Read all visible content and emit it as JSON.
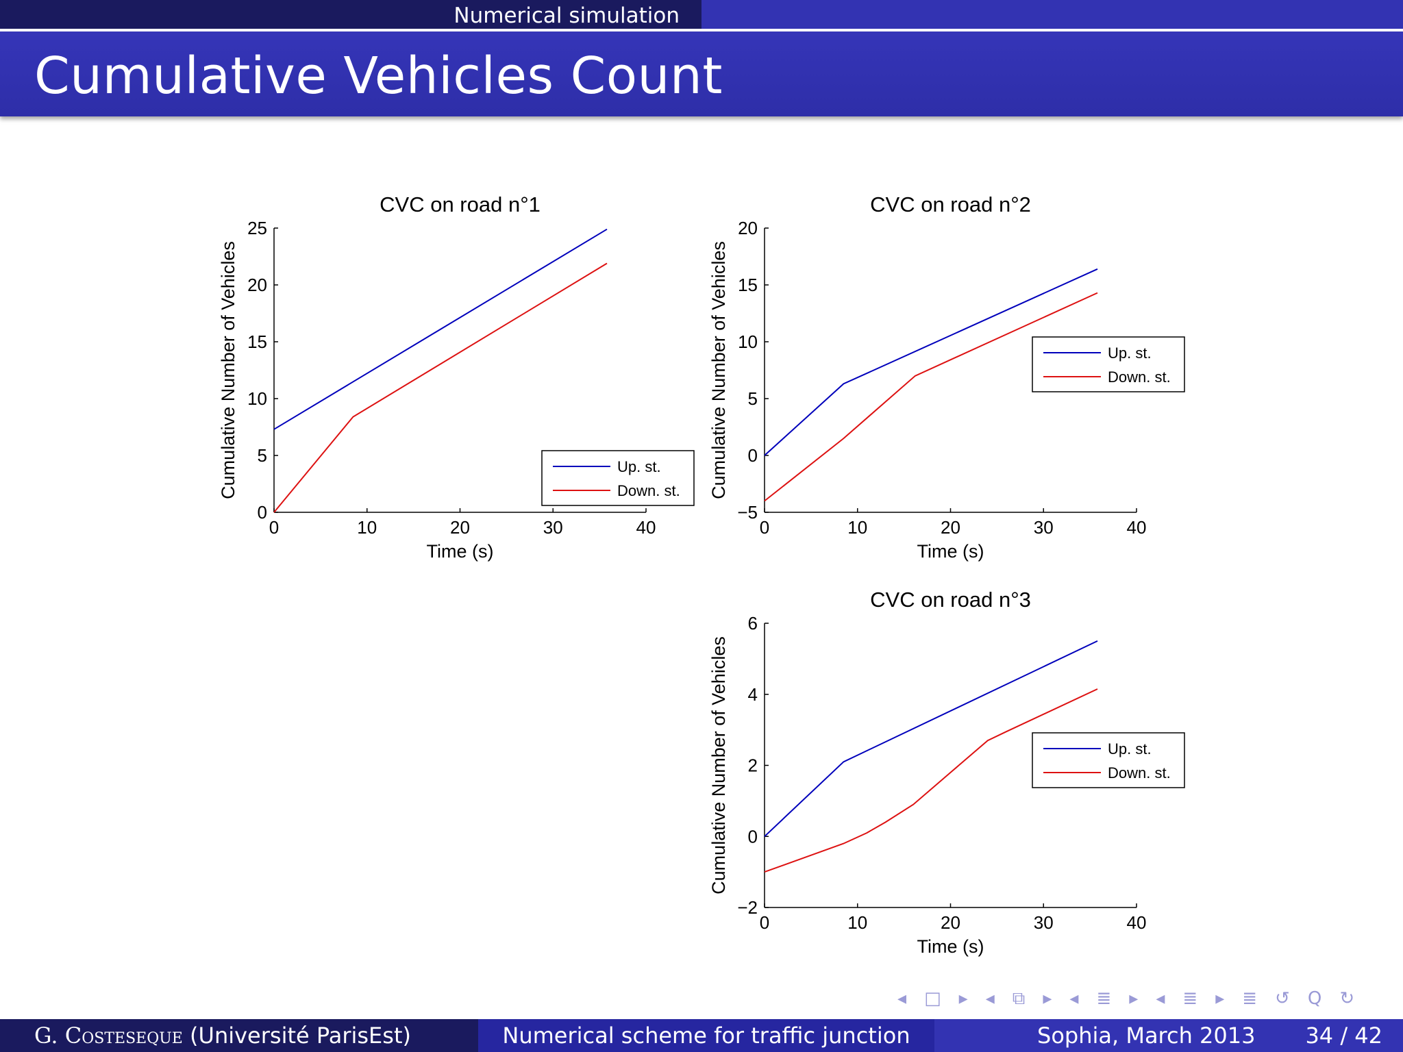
{
  "header": {
    "section": "Numerical simulation",
    "title": "Cumulative Vehicles Count"
  },
  "footer": {
    "author_first": "G. ",
    "author_last": "Costeseque",
    "affiliation": "(Université ParisEst)",
    "talk_title": "Numerical scheme for traffic junction",
    "date": "Sophia, March 2013",
    "page": "34 / 42"
  },
  "nav": {
    "symbols": [
      "◂",
      "□",
      "▸",
      "◂",
      "⧉",
      "▸",
      "◂",
      "≣",
      "▸",
      "◂",
      "≣",
      "▸",
      "≣",
      "↺",
      "Q",
      "↻"
    ]
  },
  "colors": {
    "up": "#0000bb",
    "down": "#dd1111"
  },
  "chart_data": [
    {
      "type": "line",
      "title": "CVC on road n°1",
      "xlabel": "Time (s)",
      "ylabel": "Cumulative Number of Vehicles",
      "xlim": [
        0,
        40
      ],
      "ylim": [
        0,
        25
      ],
      "xticks": [
        0,
        10,
        20,
        30,
        40
      ],
      "yticks": [
        0,
        5,
        10,
        15,
        20,
        25
      ],
      "legend_position": "bottom-right",
      "series": [
        {
          "name": "Up. st.",
          "color": "#0000bb",
          "x": [
            0,
            35.8
          ],
          "y": [
            7.3,
            24.9
          ]
        },
        {
          "name": "Down. st.",
          "color": "#dd1111",
          "x": [
            0,
            8.5,
            35.8
          ],
          "y": [
            0,
            8.4,
            21.9
          ]
        }
      ]
    },
    {
      "type": "line",
      "title": "CVC on road n°2",
      "xlabel": "Time (s)",
      "ylabel": "Cumulative Number of Vehicles",
      "xlim": [
        0,
        40
      ],
      "ylim": [
        -5,
        20
      ],
      "xticks": [
        0,
        10,
        20,
        30,
        40
      ],
      "yticks": [
        -5,
        0,
        5,
        10,
        15,
        20
      ],
      "legend_position": "middle-right",
      "series": [
        {
          "name": "Up. st.",
          "color": "#0000bb",
          "x": [
            0,
            8.5,
            35.8
          ],
          "y": [
            0,
            6.3,
            16.4
          ]
        },
        {
          "name": "Down. st.",
          "color": "#dd1111",
          "x": [
            0,
            8.5,
            16.2,
            35.8
          ],
          "y": [
            -4,
            1.5,
            7.0,
            14.3
          ]
        }
      ]
    },
    {
      "type": "line",
      "title": "CVC on road n°3",
      "xlabel": "Time (s)",
      "ylabel": "Cumulative Number of Vehicles",
      "xlim": [
        0,
        40
      ],
      "ylim": [
        -2,
        6
      ],
      "xticks": [
        0,
        10,
        20,
        30,
        40
      ],
      "yticks": [
        -2,
        0,
        2,
        4,
        6
      ],
      "legend_position": "middle-right",
      "series": [
        {
          "name": "Up. st.",
          "color": "#0000bb",
          "x": [
            0,
            8.5,
            35.8
          ],
          "y": [
            0,
            2.1,
            5.5
          ]
        },
        {
          "name": "Down. st.",
          "color": "#dd1111",
          "x": [
            0,
            8.5,
            11,
            13,
            16,
            20,
            24,
            26,
            35.8
          ],
          "y": [
            -1,
            -0.2,
            0.1,
            0.4,
            0.9,
            1.8,
            2.7,
            2.95,
            4.15
          ]
        }
      ]
    }
  ]
}
